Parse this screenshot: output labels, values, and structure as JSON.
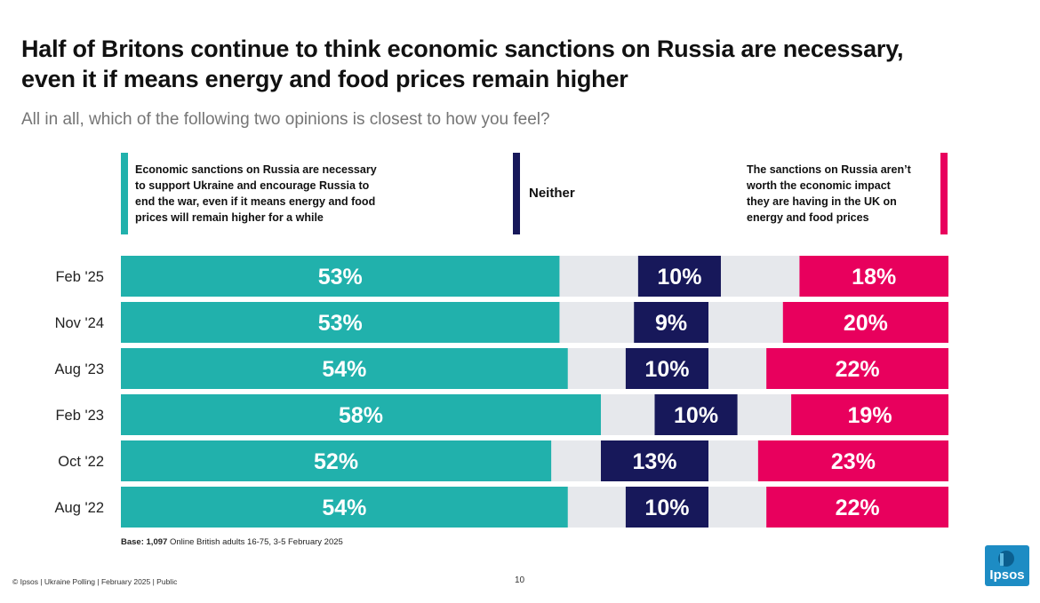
{
  "title": "Half of Britons continue to think economic sanctions on Russia are necessary,\neven it if means energy and food prices remain higher",
  "subtitle": "All in all, which of the following two opinions is closest to how you feel?",
  "legend": {
    "left": "Economic sanctions on Russia are necessary\nto support Ukraine and encourage Russia to\nend the war, even if it means energy and food\nprices will remain higher for a while",
    "middle": "Neither",
    "right": "The sanctions on Russia aren’t\nworth the economic impact\nthey are having in the UK on\nenergy and food prices"
  },
  "colors": {
    "necessary": "#21b1ac",
    "neither": "#17185a",
    "not_worth": "#e8005d",
    "gap": "#e6e8ec"
  },
  "chart_data": {
    "type": "bar",
    "orientation": "horizontal-diverging",
    "categories": [
      "Feb '25",
      "Nov '24",
      "Aug '23",
      "Feb '23",
      "Oct '22",
      "Aug '22"
    ],
    "series": [
      {
        "values": [
          53,
          53,
          54,
          58,
          52,
          54
        ]
      },
      {
        "values": [
          10,
          9,
          10,
          10,
          13,
          10
        ]
      },
      {
        "values": [
          18,
          20,
          22,
          19,
          23,
          22
        ]
      }
    ],
    "value_suffix": "%"
  },
  "base": {
    "label": "Base:",
    "sample": "1,097",
    "text": "Online British adults 16-75, 3-5 February 2025"
  },
  "footer": "© Ipsos | Ukraine Polling | February 2025 | Public",
  "page_number": "10",
  "logo": {
    "text": "Ipsos",
    "icon": "ipsos-logo-icon"
  }
}
